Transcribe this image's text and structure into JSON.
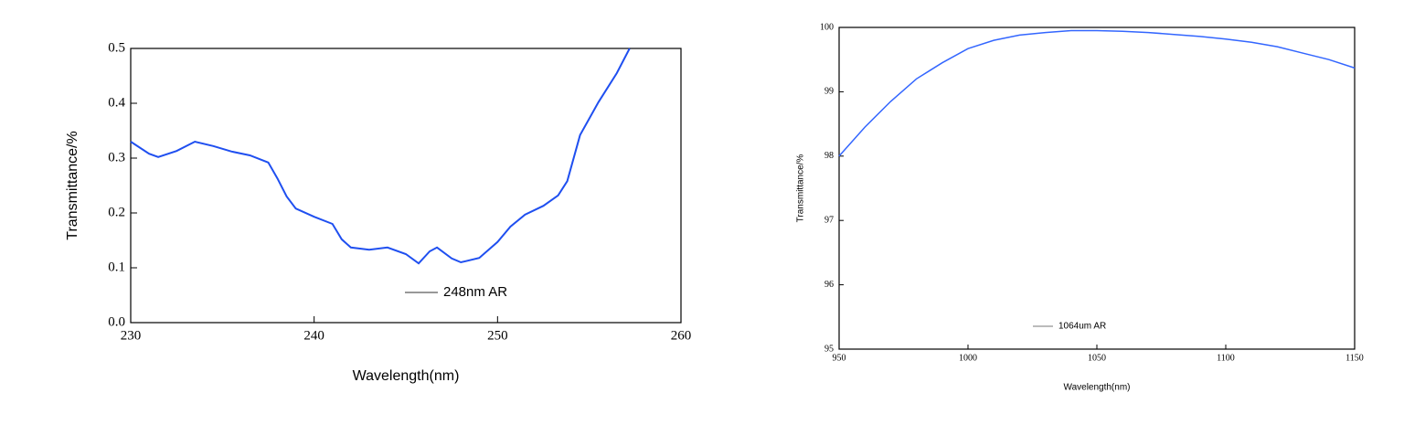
{
  "chart_data": [
    {
      "type": "line",
      "x_label": "Wavelength(nm)",
      "y_label": "Transmittance/%",
      "x": [
        230,
        231,
        231.5,
        232.5,
        233.5,
        234.5,
        235.5,
        236.5,
        237.5,
        238,
        238.5,
        239,
        240,
        241,
        241.5,
        242,
        243,
        244,
        245,
        245.7,
        246.3,
        246.7,
        247.5,
        248,
        249,
        250,
        250.7,
        251.5,
        252.5,
        253.3,
        253.8,
        254.5,
        255.5,
        256.5,
        257.2
      ],
      "series": [
        {
          "name": "248nm AR",
          "color": "#1f4ff0",
          "values": [
            0.33,
            0.308,
            0.302,
            0.313,
            0.33,
            0.322,
            0.312,
            0.305,
            0.292,
            0.263,
            0.23,
            0.208,
            0.193,
            0.18,
            0.152,
            0.137,
            0.133,
            0.137,
            0.125,
            0.108,
            0.13,
            0.137,
            0.117,
            0.11,
            0.118,
            0.147,
            0.175,
            0.197,
            0.213,
            0.232,
            0.258,
            0.342,
            0.402,
            0.455,
            0.5
          ]
        }
      ],
      "xlim": [
        230,
        260
      ],
      "xticks": [
        230,
        240,
        250,
        260
      ],
      "ylim": [
        0,
        0.5
      ],
      "yticks": [
        {
          "value": 0,
          "label": "0.0"
        },
        0.1,
        0.2,
        0.3,
        0.4,
        0.5
      ],
      "legend": "lower center",
      "legend_color": "#999999"
    },
    {
      "type": "line",
      "x_label": "Wavelength(nm)",
      "y_label": "Transmittance/%",
      "x": [
        950,
        960,
        970,
        980,
        990,
        1000,
        1010,
        1020,
        1030,
        1040,
        1050,
        1060,
        1070,
        1080,
        1090,
        1100,
        1110,
        1120,
        1130,
        1140,
        1150
      ],
      "series": [
        {
          "name": "1064um AR",
          "color": "#3366ff",
          "values": [
            98.0,
            98.45,
            98.85,
            99.2,
            99.45,
            99.67,
            99.8,
            99.88,
            99.92,
            99.95,
            99.95,
            99.94,
            99.92,
            99.89,
            99.86,
            99.82,
            99.77,
            99.7,
            99.6,
            99.5,
            99.37
          ]
        }
      ],
      "xlim": [
        950,
        1150
      ],
      "xticks": [
        950,
        1000,
        1050,
        1100,
        1150
      ],
      "ylim": [
        95,
        100
      ],
      "yticks": [
        95,
        96,
        97,
        98,
        99,
        100
      ],
      "legend": "lower center",
      "legend_color": "#bbbbbb"
    }
  ]
}
